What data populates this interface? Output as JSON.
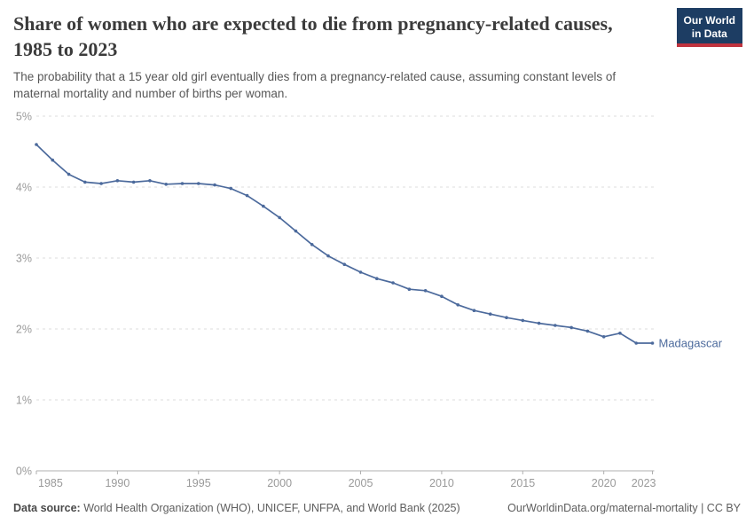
{
  "header": {
    "title": "Share of women who are expected to die from pregnancy-related causes, 1985 to 2023",
    "subtitle": "The probability that a 15 year old girl eventually dies from a pregnancy-related cause, assuming constant levels of maternal mortality and number of births per woman.",
    "logo": {
      "line1": "Our World",
      "line2": "in Data"
    }
  },
  "chart_data": {
    "type": "line",
    "title": "Share of women who are expected to die from pregnancy-related causes, 1985 to 2023",
    "x": [
      1985,
      1986,
      1987,
      1988,
      1989,
      1990,
      1991,
      1992,
      1993,
      1994,
      1995,
      1996,
      1997,
      1998,
      1999,
      2000,
      2001,
      2002,
      2003,
      2004,
      2005,
      2006,
      2007,
      2008,
      2009,
      2010,
      2011,
      2012,
      2013,
      2014,
      2015,
      2016,
      2017,
      2018,
      2019,
      2020,
      2021,
      2022,
      2023
    ],
    "series": [
      {
        "name": "Madagascar",
        "color": "#4C6A9C",
        "values": [
          4.6,
          4.38,
          4.18,
          4.07,
          4.05,
          4.09,
          4.07,
          4.09,
          4.04,
          4.05,
          4.05,
          4.03,
          3.98,
          3.88,
          3.73,
          3.57,
          3.38,
          3.19,
          3.03,
          2.91,
          2.8,
          2.71,
          2.65,
          2.56,
          2.54,
          2.46,
          2.34,
          2.26,
          2.21,
          2.16,
          2.12,
          2.08,
          2.05,
          2.02,
          1.97,
          1.89,
          1.94,
          1.8,
          1.8
        ]
      }
    ],
    "xlabel": "",
    "ylabel": "",
    "xlim": [
      1985,
      2023
    ],
    "ylim": [
      0,
      5
    ],
    "yticks": [
      0,
      1,
      2,
      3,
      4,
      5
    ],
    "ytick_labels": [
      "0%",
      "1%",
      "2%",
      "3%",
      "4%",
      "5%"
    ],
    "xticks": [
      1985,
      1990,
      1995,
      2000,
      2005,
      2010,
      2015,
      2020,
      2023
    ],
    "grid": "horizontal-dashed",
    "legend_position": "end-of-line-label"
  },
  "colors": {
    "line": "#4C6A9C",
    "grid": "#dcdcdc",
    "axis": "#afafaf",
    "tick_label": "#9a9a9a",
    "logo_bg": "#1d3d63",
    "logo_stripe": "#c0333e"
  },
  "footer": {
    "datasource_label": "Data source:",
    "datasource_text": " World Health Organization (WHO), UNICEF, UNFPA, and World Bank (2025)",
    "attribution": "OurWorldinData.org/maternal-mortality | CC BY"
  }
}
